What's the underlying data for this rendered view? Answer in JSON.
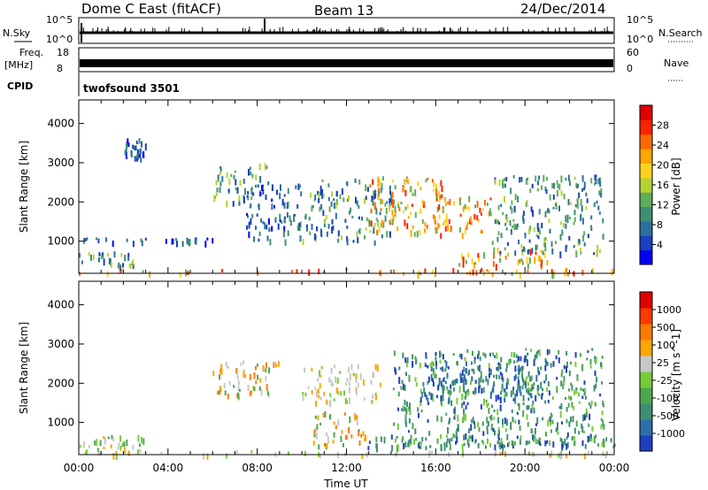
{
  "header": {
    "station": "Dome C East (fitACF)",
    "beam": "Beam 13",
    "date": "24/Dec/2014"
  },
  "top_panels": {
    "nsky_label": "N.Sky",
    "nsky_ticks": [
      "10^5",
      "10^0"
    ],
    "nsearch_label": "N.Search",
    "nsearch_ticks": [
      "10^5",
      "10^0"
    ],
    "freq_label_1": "Freq.",
    "freq_label_2": "[MHz]",
    "freq_ticks": [
      "18",
      "8"
    ],
    "nave_label": "Nave",
    "nave_ticks": [
      "60",
      "0"
    ],
    "cpid_label": "CPID",
    "cpid_value": "twofsound 3501"
  },
  "chart_data": [
    {
      "type": "heatmap",
      "name": "power",
      "ylabel": "Slant Range [km]",
      "xlabel": "Time UT",
      "x_ticks": [
        "00:00",
        "04:00",
        "08:00",
        "12:00",
        "16:00",
        "20:00",
        "00:00"
      ],
      "xlim_hours": [
        0,
        24
      ],
      "y_ticks": [
        1000,
        2000,
        3000,
        4000
      ],
      "ylim": [
        180,
        4600
      ],
      "colorbar": {
        "label": "Power [dB]",
        "ticks": [
          "28",
          "24",
          "20",
          "16",
          "12",
          "8",
          "4"
        ],
        "colors": [
          "#0000ff",
          "#1a3fbf",
          "#2e6f9e",
          "#3e8f74",
          "#5fae5a",
          "#b5d430",
          "#ffd21f",
          "#ffa500",
          "#ff6a00",
          "#ff2000",
          "#e00000"
        ]
      },
      "echo_regions": [
        {
          "t": [
            0.0,
            24.0
          ],
          "r": [
            200,
            320
          ],
          "level": "high"
        },
        {
          "t": [
            0.0,
            2.5
          ],
          "r": [
            350,
            750
          ],
          "level": "mid"
        },
        {
          "t": [
            0.0,
            6.0
          ],
          "r": [
            1000,
            1100
          ],
          "level": "low"
        },
        {
          "t": [
            2.0,
            3.0
          ],
          "r": [
            3100,
            3650
          ],
          "level": "low"
        },
        {
          "t": [
            6.0,
            8.5
          ],
          "r": [
            2000,
            3000
          ],
          "level": "mid"
        },
        {
          "t": [
            7.5,
            10.0
          ],
          "r": [
            1000,
            2500
          ],
          "level": "low"
        },
        {
          "t": [
            10.0,
            14.0
          ],
          "r": [
            1000,
            2600
          ],
          "level": "mid"
        },
        {
          "t": [
            13.0,
            16.5
          ],
          "r": [
            1200,
            2700
          ],
          "level": "high"
        },
        {
          "t": [
            16.0,
            18.5
          ],
          "r": [
            1200,
            2200
          ],
          "level": "high"
        },
        {
          "t": [
            17.0,
            21.0
          ],
          "r": [
            400,
            900
          ],
          "level": "high"
        },
        {
          "t": [
            18.5,
            23.5
          ],
          "r": [
            700,
            2700
          ],
          "level": "mid"
        }
      ]
    },
    {
      "type": "heatmap",
      "name": "velocity",
      "ylabel": "Slant Range [km]",
      "xlabel": "Time UT",
      "x_ticks": [
        "00:00",
        "04:00",
        "08:00",
        "12:00",
        "16:00",
        "20:00",
        "00:00"
      ],
      "xlim_hours": [
        0,
        24
      ],
      "y_ticks": [
        1000,
        2000,
        3000,
        4000
      ],
      "ylim": [
        180,
        4600
      ],
      "colorbar": {
        "label": "Velocity [m s^-1]",
        "ticks": [
          "1000",
          "500",
          "100",
          "25",
          "-25",
          "-100",
          "-500",
          "-1000"
        ],
        "colors": [
          "#1f3fbf",
          "#2d6fa8",
          "#3e8f74",
          "#4fa64f",
          "#76cc3a",
          "#c8c8c8",
          "#ffa500",
          "#ff7a00",
          "#ff3a00",
          "#e00000"
        ]
      },
      "echo_regions": [
        {
          "t": [
            0.0,
            24.0
          ],
          "r": [
            200,
            300
          ],
          "level": "gray"
        },
        {
          "t": [
            0.0,
            3.0
          ],
          "r": [
            300,
            700
          ],
          "level": "ground"
        },
        {
          "t": [
            6.0,
            9.0
          ],
          "r": [
            1700,
            2600
          ],
          "level": "orange"
        },
        {
          "t": [
            10.0,
            13.5
          ],
          "r": [
            1500,
            2500
          ],
          "level": "gray"
        },
        {
          "t": [
            10.5,
            13.0
          ],
          "r": [
            400,
            1300
          ],
          "level": "orange"
        },
        {
          "t": [
            14.0,
            23.5
          ],
          "r": [
            400,
            2900
          ],
          "level": "green"
        },
        {
          "t": [
            15.5,
            21.0
          ],
          "r": [
            1600,
            2800
          ],
          "level": "blue"
        },
        {
          "t": [
            12.5,
            24.0
          ],
          "r": [
            400,
            700
          ],
          "level": "green"
        }
      ]
    }
  ]
}
